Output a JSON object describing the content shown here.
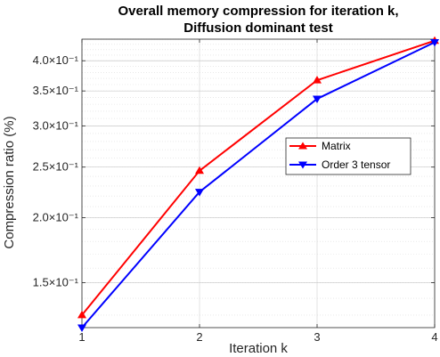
{
  "chart_data": {
    "type": "line",
    "title": [
      "Overall memory compression for iteration k,",
      "Diffusion dominant test"
    ],
    "xlabel": "Iteration k",
    "ylabel": "Compression ratio (%)",
    "yscale": "log",
    "xlim": [
      1,
      4
    ],
    "ylim": [
      0.123,
      0.44
    ],
    "x": [
      1,
      2,
      3,
      4
    ],
    "xtick_labels": [
      "1",
      "2",
      "3",
      "4"
    ],
    "yticks": [
      0.15,
      0.2,
      0.25,
      0.3,
      0.35,
      0.4
    ],
    "ytick_labels": [
      "1.5×10⁻¹",
      "2.0×10⁻¹",
      "2.5×10⁻¹",
      "3.0×10⁻¹",
      "3.5×10⁻¹",
      "4.0×10⁻¹"
    ],
    "grid": true,
    "minor_grid": true,
    "legend_position": "center-right",
    "series": [
      {
        "name": "Matrix",
        "values": [
          0.13,
          0.246,
          0.367,
          0.437
        ],
        "color": "#ff0000",
        "marker": "triangle-up"
      },
      {
        "name": "Order 3 tensor",
        "values": [
          0.123,
          0.224,
          0.338,
          0.434
        ],
        "color": "#0000ff",
        "marker": "triangle-down"
      }
    ]
  }
}
